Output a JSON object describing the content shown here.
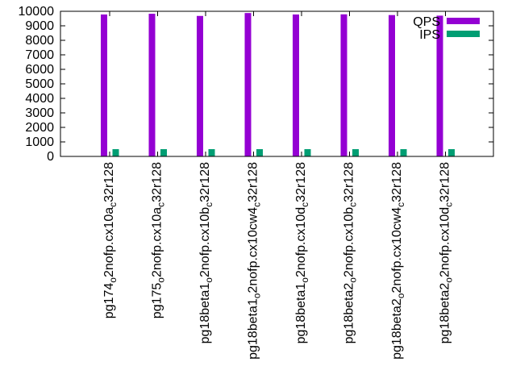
{
  "chart_data": {
    "type": "bar",
    "title": "",
    "xlabel": "",
    "ylabel": "",
    "ylim": [
      0,
      10000
    ],
    "yticks": [
      0,
      1000,
      2000,
      3000,
      4000,
      5000,
      6000,
      7000,
      8000,
      9000,
      10000
    ],
    "grid": false,
    "legend_position": "top-right",
    "categories": [
      {
        "main": "pg174",
        "sub1": "o",
        "mid": "2nofp.cx10a",
        "sub2": "c",
        "tail": "32r128"
      },
      {
        "main": "pg175",
        "sub1": "o",
        "mid": "2nofp.cx10a",
        "sub2": "c",
        "tail": "32r128"
      },
      {
        "main": "pg18beta1",
        "sub1": "o",
        "mid": "2nofp.cx10b",
        "sub2": "c",
        "tail": "32r128"
      },
      {
        "main": "pg18beta1",
        "sub1": "o",
        "mid": "2nofp.cx10cw4",
        "sub2": "c",
        "tail": "32r128"
      },
      {
        "main": "pg18beta1",
        "sub1": "o",
        "mid": "2nofp.cx10d",
        "sub2": "c",
        "tail": "32r128"
      },
      {
        "main": "pg18beta2",
        "sub1": "o",
        "mid": "2nofp.cx10b",
        "sub2": "c",
        "tail": "32r128"
      },
      {
        "main": "pg18beta2",
        "sub1": "o",
        "mid": "2nofp.cx10cw4",
        "sub2": "c",
        "tail": "32r128"
      },
      {
        "main": "pg18beta2",
        "sub1": "o",
        "mid": "2nofp.cx10d",
        "sub2": "c",
        "tail": "32r128"
      }
    ],
    "series": [
      {
        "name": "QPS",
        "color": "#9400d3",
        "values": [
          9780,
          9830,
          9680,
          9880,
          9780,
          9790,
          9740,
          9700
        ]
      },
      {
        "name": "IPS",
        "color": "#009e73",
        "values": [
          500,
          500,
          500,
          500,
          500,
          500,
          500,
          500
        ]
      }
    ]
  }
}
